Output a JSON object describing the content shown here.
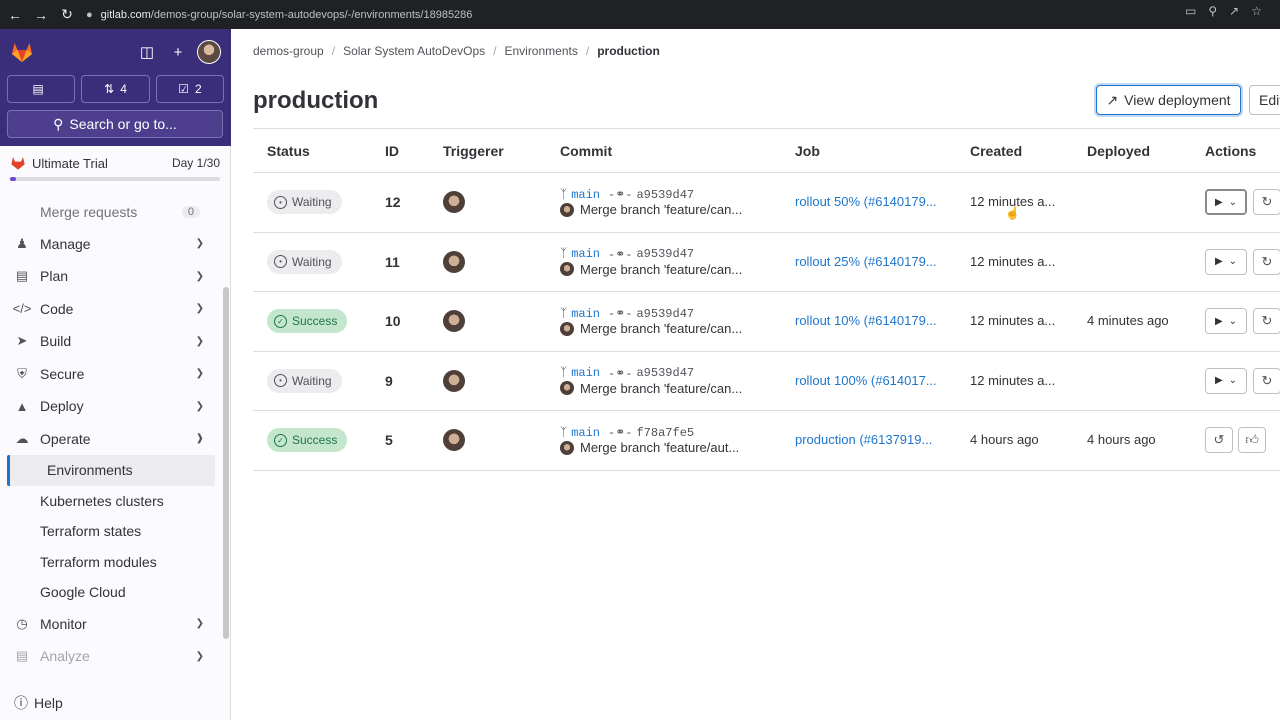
{
  "browser": {
    "url_host": "gitlab.com",
    "url_path": "/demos-group/solar-system-autodevops/-/environments/18985286"
  },
  "sidebar": {
    "counts": [
      {
        "icon": "issues-board-icon",
        "value": ""
      },
      {
        "icon": "merge-request-icon",
        "value": "4"
      },
      {
        "icon": "todo-icon",
        "value": "2"
      }
    ],
    "search_label": "Search or go to...",
    "trial": {
      "label": "Ultimate Trial",
      "day": "Day 1/30",
      "progress_fraction": 0.03
    },
    "merge_requests": {
      "label": "Merge requests",
      "count": "0"
    },
    "items": [
      {
        "label": "Manage",
        "icon": "users-icon"
      },
      {
        "label": "Plan",
        "icon": "plan-icon"
      },
      {
        "label": "Code",
        "icon": "code-icon"
      },
      {
        "label": "Build",
        "icon": "rocket-icon"
      },
      {
        "label": "Secure",
        "icon": "shield-icon"
      },
      {
        "label": "Deploy",
        "icon": "deploy-icon"
      },
      {
        "label": "Operate",
        "icon": "cloud-gear-icon"
      }
    ],
    "operate_sub": [
      "Environments",
      "Kubernetes clusters",
      "Terraform states",
      "Terraform modules",
      "Google Cloud"
    ],
    "monitor": "Monitor",
    "analyze": "Analyze",
    "help": "Help"
  },
  "breadcrumb": [
    "demos-group",
    "Solar System AutoDevOps",
    "Environments",
    "production"
  ],
  "page_title": "production",
  "buttons": {
    "view_deployment": "View deployment",
    "edit": "Edit"
  },
  "table": {
    "headers": [
      "Status",
      "ID",
      "Triggerer",
      "Commit",
      "Job",
      "Created",
      "Deployed",
      "Actions"
    ],
    "rows": [
      {
        "status": "Waiting",
        "id": "12",
        "ref": "main",
        "sha": "a9539d47",
        "message": "Merge branch 'feature/can...",
        "job": "rollout 50% (#6140179...",
        "created": "12 minutes a...",
        "deployed": "",
        "actions": "play"
      },
      {
        "status": "Waiting",
        "id": "11",
        "ref": "main",
        "sha": "a9539d47",
        "message": "Merge branch 'feature/can...",
        "job": "rollout 25% (#6140179...",
        "created": "12 minutes a...",
        "deployed": "",
        "actions": "play"
      },
      {
        "status": "Success",
        "id": "10",
        "ref": "main",
        "sha": "a9539d47",
        "message": "Merge branch 'feature/can...",
        "job": "rollout 10% (#6140179...",
        "created": "12 minutes a...",
        "deployed": "4 minutes ago",
        "actions": "play"
      },
      {
        "status": "Waiting",
        "id": "9",
        "ref": "main",
        "sha": "a9539d47",
        "message": "Merge branch 'feature/can...",
        "job": "rollout 100% (#614017...",
        "created": "12 minutes a...",
        "deployed": "",
        "actions": "play"
      },
      {
        "status": "Success",
        "id": "5",
        "ref": "main",
        "sha": "f78a7fe5",
        "message": "Merge branch 'feature/aut...",
        "job": "production (#6137919...",
        "created": "4 hours ago",
        "deployed": "4 hours ago",
        "actions": "rollback-approve"
      }
    ]
  }
}
